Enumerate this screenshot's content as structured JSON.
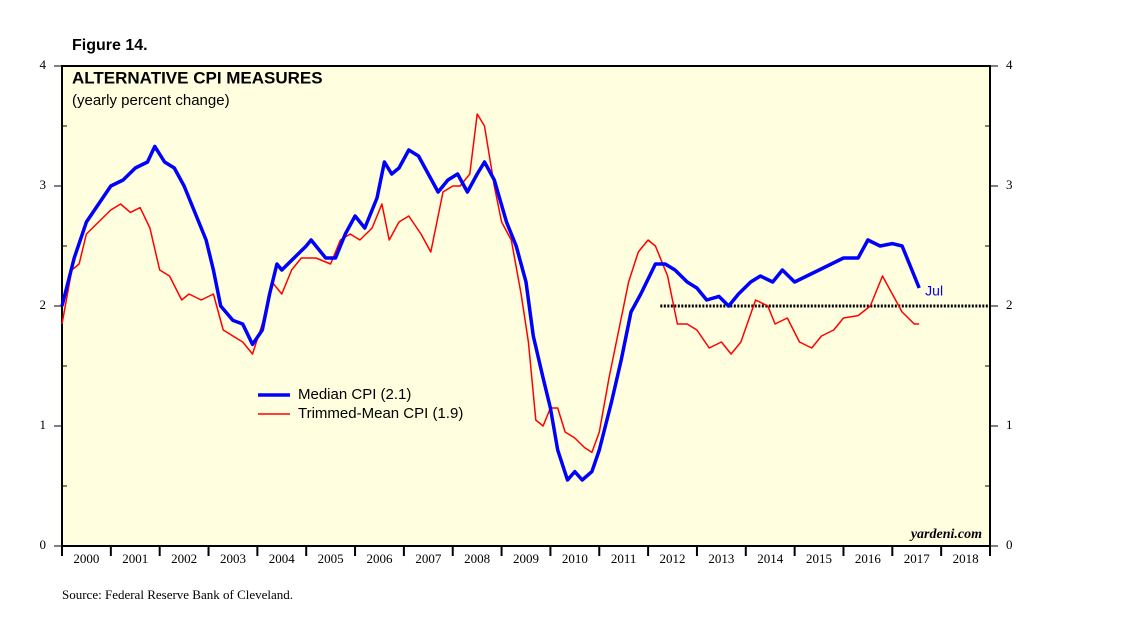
{
  "chart_data": {
    "type": "line",
    "figure_label": "Figure 14.",
    "title": "ALTERNATIVE CPI MEASURES",
    "subtitle": "(yearly percent change)",
    "source": "Source: Federal Reserve Bank of Cleveland.",
    "watermark": "yardeni.com",
    "end_label": "Jul",
    "xlim": [
      2000,
      2019
    ],
    "xticks": [
      {
        "value": 2000.5,
        "label": "2000"
      },
      {
        "value": 2001.5,
        "label": "2001"
      },
      {
        "value": 2002.5,
        "label": "2002"
      },
      {
        "value": 2003.5,
        "label": "2003"
      },
      {
        "value": 2004.5,
        "label": "2004"
      },
      {
        "value": 2005.5,
        "label": "2005"
      },
      {
        "value": 2006.5,
        "label": "2006"
      },
      {
        "value": 2007.5,
        "label": "2007"
      },
      {
        "value": 2008.5,
        "label": "2008"
      },
      {
        "value": 2009.5,
        "label": "2009"
      },
      {
        "value": 2010.5,
        "label": "2010"
      },
      {
        "value": 2011.5,
        "label": "2011"
      },
      {
        "value": 2012.5,
        "label": "2012"
      },
      {
        "value": 2013.5,
        "label": "2013"
      },
      {
        "value": 2014.5,
        "label": "2014"
      },
      {
        "value": 2015.5,
        "label": "2015"
      },
      {
        "value": 2016.5,
        "label": "2016"
      },
      {
        "value": 2017.5,
        "label": "2017"
      },
      {
        "value": 2018.5,
        "label": "2018"
      }
    ],
    "ylim": [
      0,
      4
    ],
    "yticks": [
      0,
      1,
      2,
      3,
      4
    ],
    "y2lim": [
      0,
      4
    ],
    "y2ticks": [
      0,
      1,
      2,
      3,
      4
    ],
    "hline": {
      "y": 2,
      "xlim": [
        2012.25,
        2019
      ]
    },
    "background": "#ffffe0",
    "series": [
      {
        "name": "Median CPI (2.1)",
        "color": "#0000ff",
        "x": [
          2000.0,
          2000.25,
          2000.5,
          2000.75,
          2001.0,
          2001.25,
          2001.5,
          2001.75,
          2001.9,
          2002.1,
          2002.3,
          2002.5,
          2002.7,
          2002.95,
          2003.1,
          2003.25,
          2003.5,
          2003.7,
          2003.9,
          2004.1,
          2004.25,
          2004.4,
          2004.5,
          2004.75,
          2005.0,
          2005.1,
          2005.4,
          2005.6,
          2005.8,
          2006.0,
          2006.2,
          2006.45,
          2006.6,
          2006.75,
          2006.9,
          2007.1,
          2007.3,
          2007.5,
          2007.7,
          2007.9,
          2008.1,
          2008.3,
          2008.5,
          2008.65,
          2008.85,
          2009.1,
          2009.3,
          2009.5,
          2009.65,
          2009.85,
          2010.0,
          2010.15,
          2010.35,
          2010.5,
          2010.65,
          2010.85,
          2011.0,
          2011.25,
          2011.45,
          2011.65,
          2011.85,
          2012.15,
          2012.35,
          2012.55,
          2012.8,
          2013.0,
          2013.2,
          2013.45,
          2013.65,
          2013.85,
          2014.1,
          2014.3,
          2014.55,
          2014.75,
          2015.0,
          2015.25,
          2015.5,
          2015.75,
          2016.0,
          2016.3,
          2016.5,
          2016.75,
          2017.0,
          2017.2,
          2017.4,
          2017.55
        ],
        "values": [
          2.0,
          2.4,
          2.7,
          2.85,
          3.0,
          3.05,
          3.15,
          3.2,
          3.33,
          3.2,
          3.15,
          3.0,
          2.8,
          2.55,
          2.3,
          2.0,
          1.88,
          1.85,
          1.68,
          1.8,
          2.1,
          2.35,
          2.3,
          2.4,
          2.5,
          2.55,
          2.4,
          2.4,
          2.6,
          2.75,
          2.65,
          2.9,
          3.2,
          3.1,
          3.15,
          3.3,
          3.25,
          3.1,
          2.95,
          3.05,
          3.1,
          2.95,
          3.1,
          3.2,
          3.05,
          2.7,
          2.5,
          2.2,
          1.75,
          1.4,
          1.15,
          0.8,
          0.55,
          0.62,
          0.55,
          0.62,
          0.8,
          1.2,
          1.55,
          1.95,
          2.1,
          2.35,
          2.35,
          2.3,
          2.2,
          2.15,
          2.05,
          2.08,
          2.0,
          2.1,
          2.2,
          2.25,
          2.2,
          2.3,
          2.2,
          2.25,
          2.3,
          2.35,
          2.4,
          2.4,
          2.55,
          2.5,
          2.52,
          2.5,
          2.3,
          2.15
        ]
      },
      {
        "name": "Trimmed-Mean CPI (1.9)",
        "color": "#ff0000",
        "x": [
          2000.0,
          2000.2,
          2000.35,
          2000.5,
          2000.75,
          2001.0,
          2001.2,
          2001.4,
          2001.6,
          2001.8,
          2002.0,
          2002.2,
          2002.45,
          2002.6,
          2002.85,
          2003.1,
          2003.3,
          2003.5,
          2003.7,
          2003.9,
          2004.1,
          2004.3,
          2004.5,
          2004.7,
          2004.9,
          2005.2,
          2005.5,
          2005.7,
          2005.9,
          2006.1,
          2006.35,
          2006.55,
          2006.7,
          2006.9,
          2007.1,
          2007.35,
          2007.55,
          2007.8,
          2008.0,
          2008.15,
          2008.35,
          2008.5,
          2008.65,
          2008.85,
          2009.0,
          2009.2,
          2009.4,
          2009.55,
          2009.7,
          2009.85,
          2010.0,
          2010.15,
          2010.3,
          2010.5,
          2010.7,
          2010.85,
          2011.0,
          2011.2,
          2011.4,
          2011.6,
          2011.8,
          2012.0,
          2012.15,
          2012.4,
          2012.6,
          2012.8,
          2013.0,
          2013.25,
          2013.5,
          2013.7,
          2013.9,
          2014.2,
          2014.45,
          2014.6,
          2014.85,
          2015.1,
          2015.35,
          2015.55,
          2015.8,
          2016.0,
          2016.3,
          2016.55,
          2016.8,
          2017.0,
          2017.2,
          2017.45,
          2017.55
        ],
        "values": [
          1.85,
          2.3,
          2.35,
          2.6,
          2.7,
          2.8,
          2.85,
          2.78,
          2.82,
          2.65,
          2.3,
          2.25,
          2.05,
          2.1,
          2.05,
          2.1,
          1.8,
          1.75,
          1.7,
          1.6,
          1.85,
          2.2,
          2.1,
          2.3,
          2.4,
          2.4,
          2.35,
          2.55,
          2.6,
          2.55,
          2.65,
          2.85,
          2.55,
          2.7,
          2.75,
          2.6,
          2.45,
          2.95,
          3.0,
          3.0,
          3.1,
          3.6,
          3.5,
          3.0,
          2.7,
          2.55,
          2.1,
          1.7,
          1.05,
          1.0,
          1.15,
          1.15,
          0.95,
          0.9,
          0.82,
          0.78,
          0.95,
          1.4,
          1.8,
          2.2,
          2.45,
          2.55,
          2.5,
          2.25,
          1.85,
          1.85,
          1.8,
          1.65,
          1.7,
          1.6,
          1.7,
          2.05,
          2.0,
          1.85,
          1.9,
          1.7,
          1.65,
          1.75,
          1.8,
          1.9,
          1.92,
          2.0,
          2.25,
          2.1,
          1.95,
          1.85,
          1.85
        ]
      }
    ]
  }
}
